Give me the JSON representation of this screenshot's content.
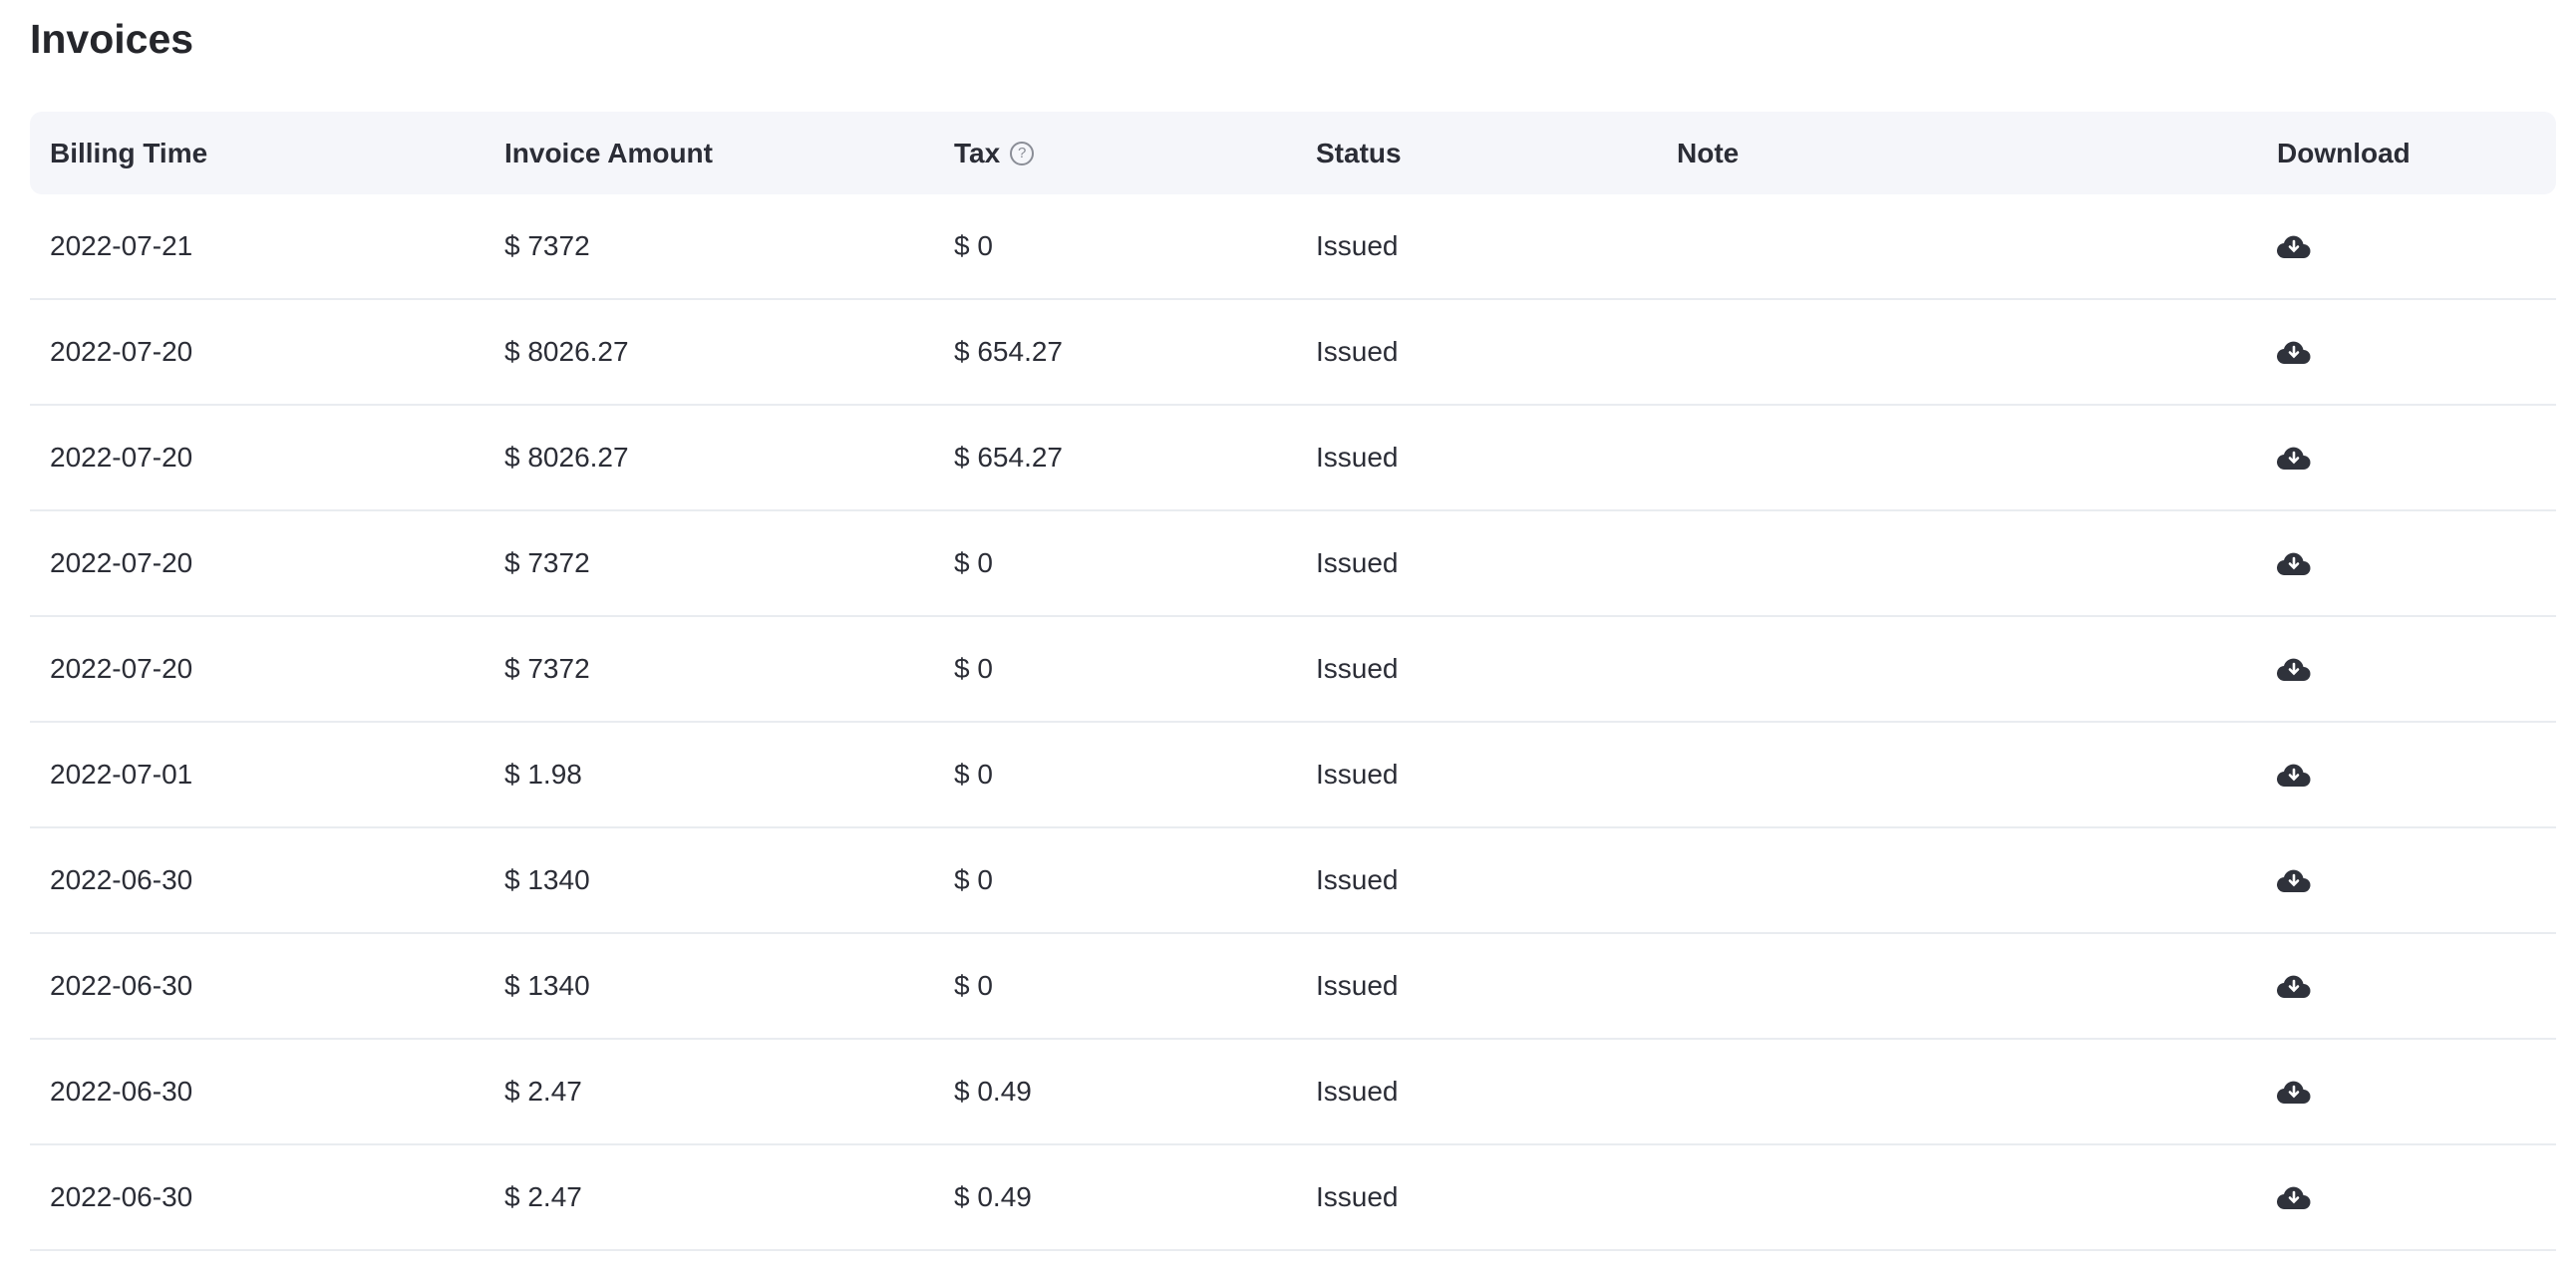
{
  "title": "Invoices",
  "columns": [
    "Billing Time",
    "Invoice Amount",
    "Tax",
    "Status",
    "Note",
    "Download"
  ],
  "tax_help_icon": "question-circle-icon",
  "download_icon": "cloud-download-icon",
  "rows": [
    {
      "time": "2022-07-21",
      "amount": "$ 7372",
      "tax": "$ 0",
      "status": "Issued",
      "note": ""
    },
    {
      "time": "2022-07-20",
      "amount": "$ 8026.27",
      "tax": "$ 654.27",
      "status": "Issued",
      "note": ""
    },
    {
      "time": "2022-07-20",
      "amount": "$ 8026.27",
      "tax": "$ 654.27",
      "status": "Issued",
      "note": ""
    },
    {
      "time": "2022-07-20",
      "amount": "$ 7372",
      "tax": "$ 0",
      "status": "Issued",
      "note": ""
    },
    {
      "time": "2022-07-20",
      "amount": "$ 7372",
      "tax": "$ 0",
      "status": "Issued",
      "note": ""
    },
    {
      "time": "2022-07-01",
      "amount": "$ 1.98",
      "tax": "$ 0",
      "status": "Issued",
      "note": ""
    },
    {
      "time": "2022-06-30",
      "amount": "$ 1340",
      "tax": "$ 0",
      "status": "Issued",
      "note": ""
    },
    {
      "time": "2022-06-30",
      "amount": "$ 1340",
      "tax": "$ 0",
      "status": "Issued",
      "note": ""
    },
    {
      "time": "2022-06-30",
      "amount": "$ 2.47",
      "tax": "$ 0.49",
      "status": "Issued",
      "note": ""
    },
    {
      "time": "2022-06-30",
      "amount": "$ 2.47",
      "tax": "$ 0.49",
      "status": "Issued",
      "note": ""
    }
  ]
}
